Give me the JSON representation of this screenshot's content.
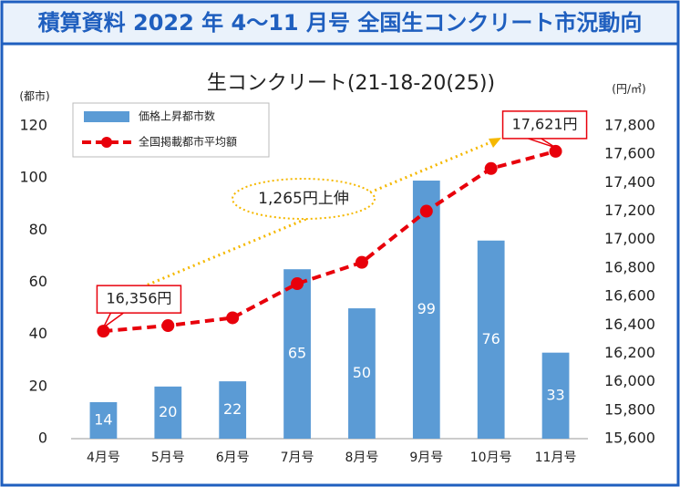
{
  "header": {
    "title": "積算資料 2022 年 4～11 月号  全国生コンクリート市況動向"
  },
  "chart_data": {
    "type": "bar_line",
    "title": "生コンクリート(21-18-20(25))",
    "y_label": "(都市)",
    "y2_label": "(円/㎥)",
    "categories": [
      "4月号",
      "5月号",
      "6月号",
      "7月号",
      "8月号",
      "9月号",
      "10月号",
      "11月号"
    ],
    "series": [
      {
        "name": "価格上昇都市数",
        "type": "bar",
        "color": "#5b9bd5",
        "values": [
          14,
          20,
          22,
          65,
          50,
          99,
          76,
          33
        ]
      },
      {
        "name": "全国掲載都市平均額",
        "type": "line",
        "axis": "y2",
        "color": "#e8000b",
        "values": [
          16356,
          16395,
          16450,
          16690,
          16840,
          17200,
          17500,
          17621
        ],
        "value_labels": [
          "16,356円",
          null,
          null,
          null,
          null,
          null,
          null,
          "17,621円"
        ]
      }
    ],
    "annotation": "1,265円上伸",
    "ylim": [
      0,
      120
    ],
    "yticks": [
      0,
      20,
      40,
      60,
      80,
      100,
      120
    ],
    "y2lim": [
      15600,
      17800
    ],
    "y2ticks": [
      {
        "value": 15600,
        "label": "15,600"
      },
      {
        "value": 15800,
        "label": "15,800"
      },
      {
        "value": 16000,
        "label": "16,000"
      },
      {
        "value": 16200,
        "label": "16,200"
      },
      {
        "value": 16400,
        "label": "16,400"
      },
      {
        "value": 16600,
        "label": "16,600"
      },
      {
        "value": 16800,
        "label": "16,800"
      },
      {
        "value": 17000,
        "label": "17,000"
      },
      {
        "value": 17200,
        "label": "17,200"
      },
      {
        "value": 17400,
        "label": "17,400"
      },
      {
        "value": 17600,
        "label": "17,600"
      },
      {
        "value": 17800,
        "label": "17,800"
      }
    ],
    "legend": "top-left",
    "grid": false
  }
}
